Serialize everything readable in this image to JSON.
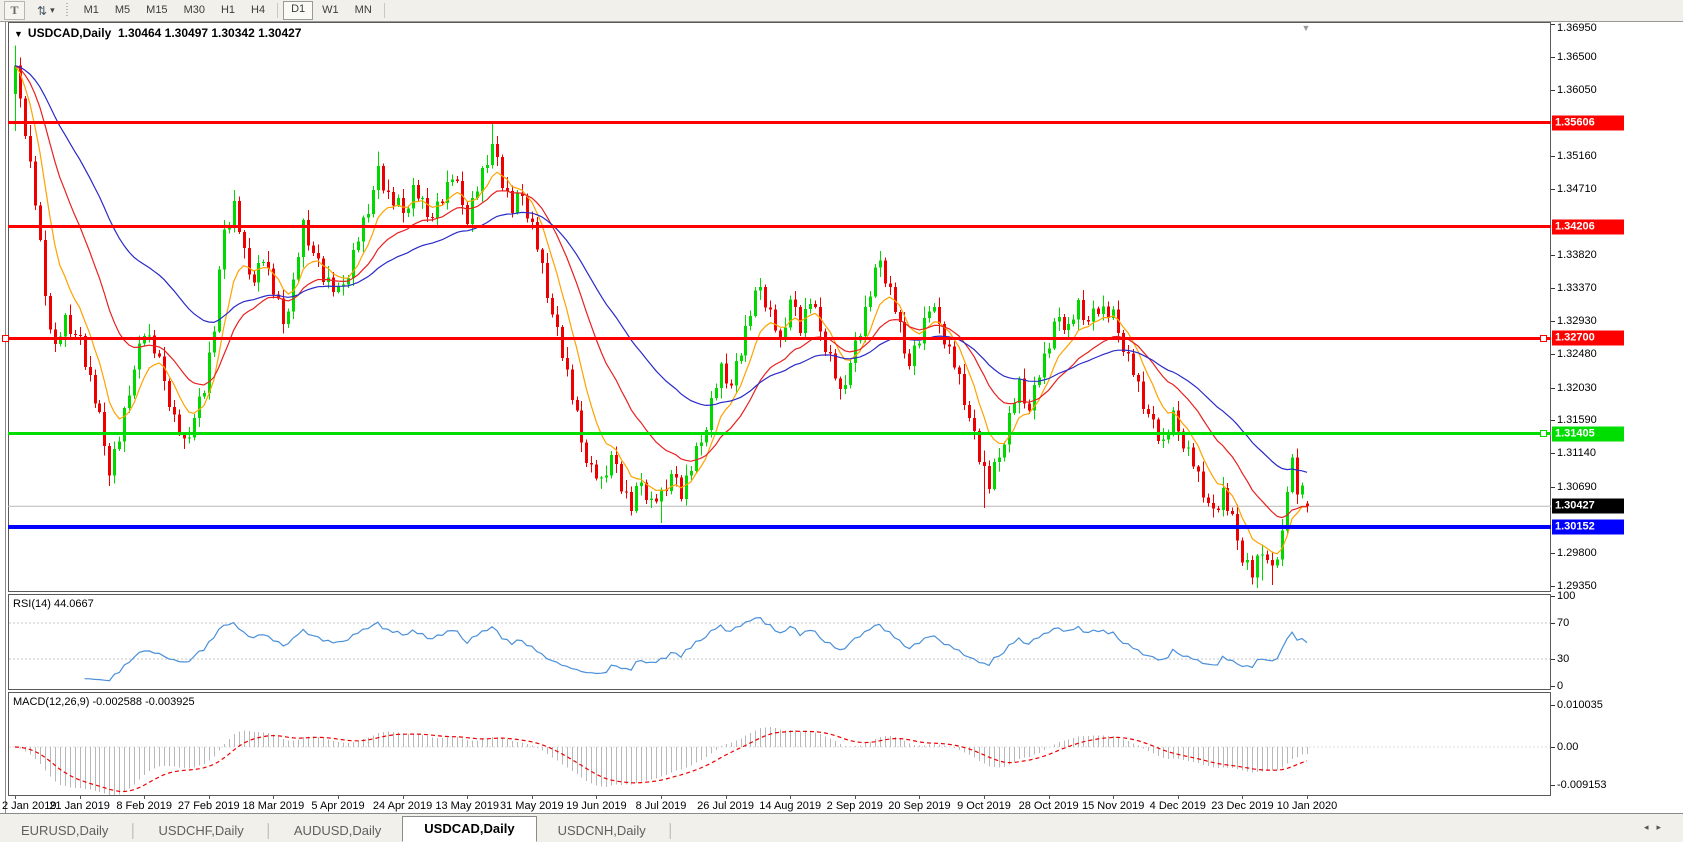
{
  "toolbar": {
    "text_tool_label": "T",
    "arrows_icon": "swap-arrows",
    "timeframes": [
      "M1",
      "M5",
      "M15",
      "M30",
      "H1",
      "H4",
      "D1",
      "W1",
      "MN"
    ],
    "active_timeframe": "D1"
  },
  "chart": {
    "menu_icon": "▼",
    "title": "USDCAD,Daily",
    "title_values": "1.30464 1.30497 1.30342 1.30427"
  },
  "chart_data": {
    "type": "candlestick",
    "symbol": "USDCAD",
    "timeframe": "Daily",
    "num_days": 261,
    "y_axis_ticks": [
      "1.36950",
      "1.36500",
      "1.36050",
      "1.35160",
      "1.34710",
      "1.33820",
      "1.33370",
      "1.32930",
      "1.32480",
      "1.32030",
      "1.31590",
      "1.31140",
      "1.30690",
      "1.29800",
      "1.29350"
    ],
    "x_axis_dates": [
      "2 Jan 2019",
      "21 Jan 2019",
      "8 Feb 2019",
      "27 Feb 2019",
      "18 Mar 2019",
      "5 Apr 2019",
      "24 Apr 2019",
      "13 May 2019",
      "31 May 2019",
      "19 Jun 2019",
      "8 Jul 2019",
      "26 Jul 2019",
      "14 Aug 2019",
      "2 Sep 2019",
      "20 Sep 2019",
      "9 Oct 2019",
      "28 Oct 2019",
      "15 Nov 2019",
      "4 Dec 2019",
      "23 Dec 2019",
      "10 Jan 2020"
    ],
    "horizontal_lines": [
      {
        "value": "1.35606",
        "price": 1.35606,
        "color": "#ff0000",
        "thickness": 3,
        "handles": []
      },
      {
        "value": "1.34206",
        "price": 1.34206,
        "color": "#ff0000",
        "thickness": 3,
        "handles": []
      },
      {
        "value": "1.32700",
        "price": 1.327,
        "color": "#ff0000",
        "thickness": 3,
        "handles": [
          "left",
          "right"
        ]
      },
      {
        "value": "1.31405",
        "price": 1.31405,
        "color": "#00dd00",
        "thickness": 3,
        "handles": [
          "right"
        ]
      },
      {
        "value": "1.30152",
        "price": 1.30152,
        "color": "#0000ff",
        "thickness": 4,
        "handles": []
      }
    ],
    "current_price": {
      "value": "1.30427",
      "price": 1.30427,
      "line_color": "#b8b8b8",
      "label_bg": "#000000"
    },
    "candle_up_color": "#00d800",
    "candle_down_color": "#ee0000",
    "close_path_anchors": [
      [
        0,
        1.362
      ],
      [
        2,
        1.3552
      ],
      [
        4,
        1.3455
      ],
      [
        6,
        1.333
      ],
      [
        8,
        1.3255
      ],
      [
        10,
        1.3292
      ],
      [
        13,
        1.3265
      ],
      [
        15,
        1.3215
      ],
      [
        17,
        1.316
      ],
      [
        19,
        1.3095
      ],
      [
        21,
        1.3132
      ],
      [
        23,
        1.32
      ],
      [
        26,
        1.3282
      ],
      [
        28,
        1.3255
      ],
      [
        30,
        1.3215
      ],
      [
        32,
        1.316
      ],
      [
        34,
        1.3125
      ],
      [
        36,
        1.3162
      ],
      [
        38,
        1.3205
      ],
      [
        40,
        1.3285
      ],
      [
        42,
        1.342
      ],
      [
        44,
        1.3448
      ],
      [
        46,
        1.3382
      ],
      [
        48,
        1.3345
      ],
      [
        50,
        1.3382
      ],
      [
        52,
        1.3335
      ],
      [
        54,
        1.3292
      ],
      [
        56,
        1.3342
      ],
      [
        58,
        1.342
      ],
      [
        60,
        1.3385
      ],
      [
        62,
        1.3355
      ],
      [
        65,
        1.333
      ],
      [
        67,
        1.3362
      ],
      [
        69,
        1.3402
      ],
      [
        71,
        1.3445
      ],
      [
        73,
        1.3495
      ],
      [
        75,
        1.3462
      ],
      [
        78,
        1.3442
      ],
      [
        80,
        1.347
      ],
      [
        82,
        1.345
      ],
      [
        84,
        1.3432
      ],
      [
        86,
        1.3462
      ],
      [
        88,
        1.349
      ],
      [
        91,
        1.3435
      ],
      [
        93,
        1.347
      ],
      [
        96,
        1.3532
      ],
      [
        98,
        1.3482
      ],
      [
        100,
        1.3445
      ],
      [
        102,
        1.3465
      ],
      [
        104,
        1.342
      ],
      [
        106,
        1.3362
      ],
      [
        108,
        1.3302
      ],
      [
        110,
        1.3252
      ],
      [
        112,
        1.3192
      ],
      [
        114,
        1.3132
      ],
      [
        116,
        1.3092
      ],
      [
        118,
        1.3072
      ],
      [
        120,
        1.3112
      ],
      [
        122,
        1.3072
      ],
      [
        124,
        1.3042
      ],
      [
        126,
        1.3078
      ],
      [
        128,
        1.3046
      ],
      [
        130,
        1.3056
      ],
      [
        132,
        1.3086
      ],
      [
        134,
        1.3062
      ],
      [
        136,
        1.3096
      ],
      [
        138,
        1.3132
      ],
      [
        140,
        1.3182
      ],
      [
        142,
        1.3226
      ],
      [
        144,
        1.3206
      ],
      [
        146,
        1.3256
      ],
      [
        148,
        1.3306
      ],
      [
        150,
        1.3342
      ],
      [
        152,
        1.3302
      ],
      [
        154,
        1.3262
      ],
      [
        156,
        1.3322
      ],
      [
        158,
        1.3286
      ],
      [
        160,
        1.3322
      ],
      [
        162,
        1.3282
      ],
      [
        164,
        1.3242
      ],
      [
        166,
        1.3192
      ],
      [
        168,
        1.3236
      ],
      [
        170,
        1.3282
      ],
      [
        172,
        1.3332
      ],
      [
        174,
        1.3378
      ],
      [
        176,
        1.3332
      ],
      [
        178,
        1.3282
      ],
      [
        180,
        1.3232
      ],
      [
        182,
        1.3272
      ],
      [
        184,
        1.3312
      ],
      [
        186,
        1.3292
      ],
      [
        188,
        1.3252
      ],
      [
        190,
        1.3212
      ],
      [
        192,
        1.3162
      ],
      [
        194,
        1.3112
      ],
      [
        196,
        1.3072
      ],
      [
        198,
        1.3112
      ],
      [
        200,
        1.3162
      ],
      [
        202,
        1.3206
      ],
      [
        204,
        1.3172
      ],
      [
        206,
        1.3226
      ],
      [
        208,
        1.3262
      ],
      [
        210,
        1.3302
      ],
      [
        212,
        1.3282
      ],
      [
        214,
        1.3312
      ],
      [
        216,
        1.3292
      ],
      [
        218,
        1.3312
      ],
      [
        221,
        1.3298
      ],
      [
        223,
        1.3262
      ],
      [
        225,
        1.3222
      ],
      [
        227,
        1.3182
      ],
      [
        229,
        1.3152
      ],
      [
        231,
        1.3128
      ],
      [
        233,
        1.3162
      ],
      [
        235,
        1.3132
      ],
      [
        237,
        1.3098
      ],
      [
        239,
        1.3062
      ],
      [
        241,
        1.3032
      ],
      [
        243,
        1.3062
      ],
      [
        245,
        1.3022
      ],
      [
        247,
        1.2978
      ],
      [
        249,
        1.2948
      ],
      [
        251,
        1.2985
      ],
      [
        253,
        1.2955
      ],
      [
        255,
        1.3005
      ],
      [
        256,
        1.3068
      ],
      [
        257,
        1.3098
      ],
      [
        258,
        1.3062
      ],
      [
        259,
        1.3082
      ],
      [
        260,
        1.30427
      ]
    ],
    "first_candle": {
      "o": 1.36,
      "h": 1.3665,
      "l": 1.355,
      "c": 1.3638
    },
    "last_candle": {
      "o": 1.30464,
      "h": 1.30497,
      "l": 1.30342,
      "c": 1.30427
    },
    "wick_overrides": {
      "19": {
        "l": 1.307
      },
      "44": {
        "h": 1.347
      },
      "73": {
        "h": 1.3522
      },
      "96": {
        "h": 1.356
      },
      "130": {
        "l": 1.302
      },
      "195": {
        "l": 1.304
      },
      "249": {
        "l": 1.2937
      },
      "251": {
        "l": 1.2942
      },
      "253": {
        "l": 1.2936
      }
    },
    "moving_averages": [
      {
        "name": "fast",
        "period": 8,
        "color": "#ffa200"
      },
      {
        "name": "medium",
        "period": 21,
        "color": "#e82020"
      },
      {
        "name": "slow",
        "period": 45,
        "color": "#2a2ac8"
      }
    ]
  },
  "rsi": {
    "label": "RSI(14)",
    "value": "44.0667",
    "period": 14,
    "ticks": [
      {
        "text": "100",
        "v": 100
      },
      {
        "text": "70",
        "v": 70
      },
      {
        "text": "30",
        "v": 30
      },
      {
        "text": "0",
        "v": 0
      }
    ],
    "level_lines": [
      70,
      30
    ],
    "line_color": "#4a90d9"
  },
  "macd": {
    "label": "MACD(12,26,9)",
    "values": "-0.002588 -0.003925",
    "fast": 12,
    "slow": 26,
    "signal": 9,
    "ticks": [
      {
        "text": "0.010035",
        "v": 0.010035
      },
      {
        "text": "0.00",
        "v": 0
      },
      {
        "text": "-0.009153",
        "v": -0.009153
      }
    ],
    "histogram_color": "#b8b8b8",
    "signal_color": "#ee0000"
  },
  "tabs": {
    "items": [
      "EURUSD,Daily",
      "USDCHF,Daily",
      "AUDUSD,Daily",
      "USDCAD,Daily",
      "USDCNH,Daily"
    ],
    "active": "USDCAD,Daily",
    "scroll_left_icon": "◂",
    "scroll_right_icon": "▸"
  }
}
